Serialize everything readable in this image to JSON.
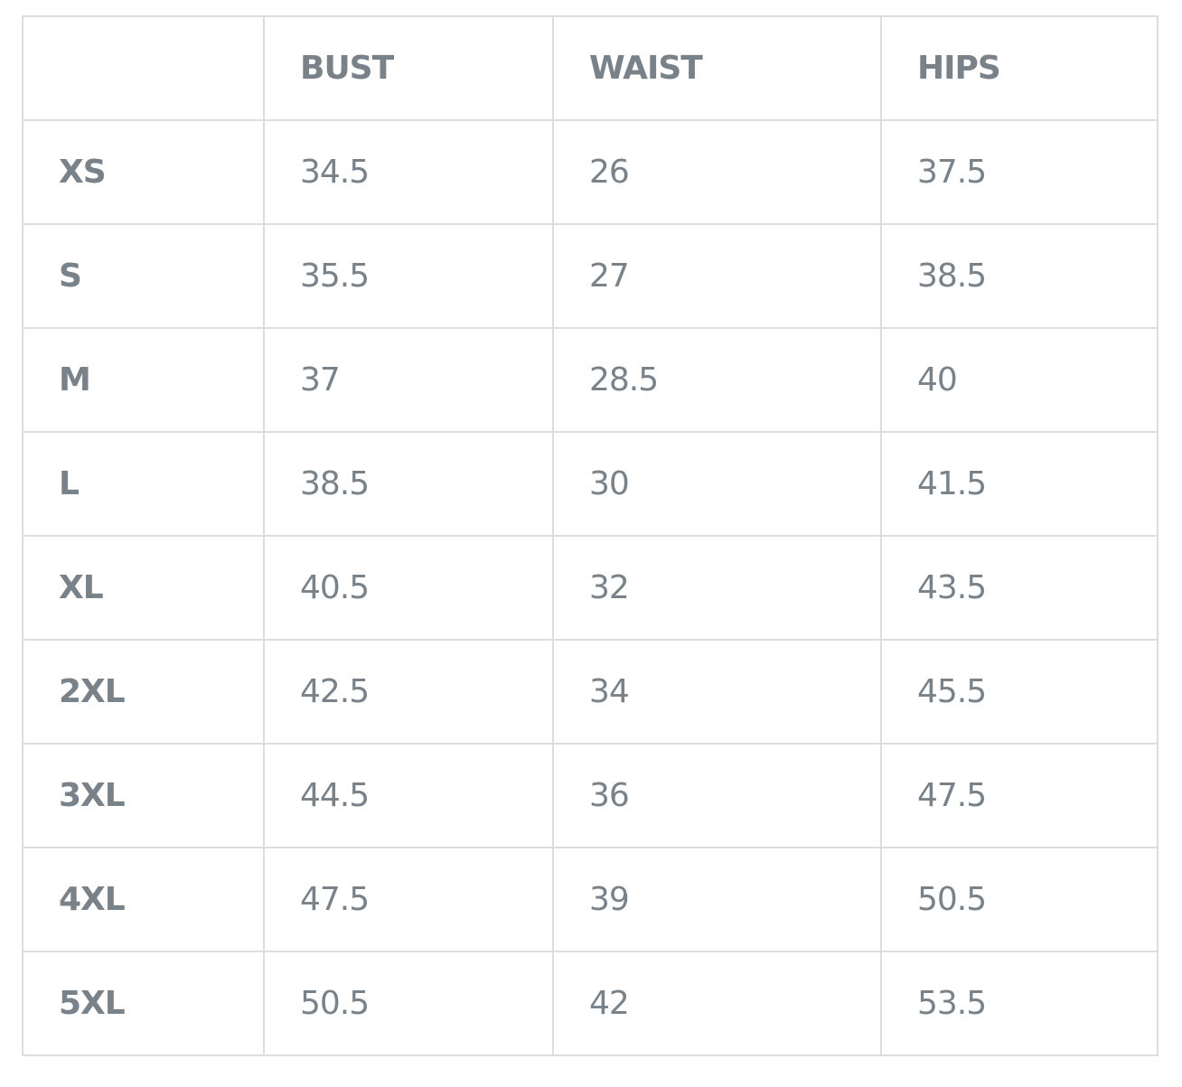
{
  "table": {
    "headers": [
      "",
      "BUST",
      "WAIST",
      "HIPS"
    ],
    "rows": [
      [
        "XS",
        "34.5",
        "26",
        "37.5"
      ],
      [
        "S",
        "35.5",
        "27",
        "38.5"
      ],
      [
        "M",
        "37",
        "28.5",
        "40"
      ],
      [
        "L",
        "38.5",
        "30",
        "41.5"
      ],
      [
        "XL",
        "40.5",
        "32",
        "43.5"
      ],
      [
        "2XL",
        "42.5",
        "34",
        "45.5"
      ],
      [
        "3XL",
        "44.5",
        "36",
        "47.5"
      ],
      [
        "4XL",
        "47.5",
        "39",
        "50.5"
      ],
      [
        "5XL",
        "50.5",
        "42",
        "53.5"
      ]
    ]
  },
  "colors": {
    "text": "#7a8289",
    "border": "#dddddd"
  }
}
